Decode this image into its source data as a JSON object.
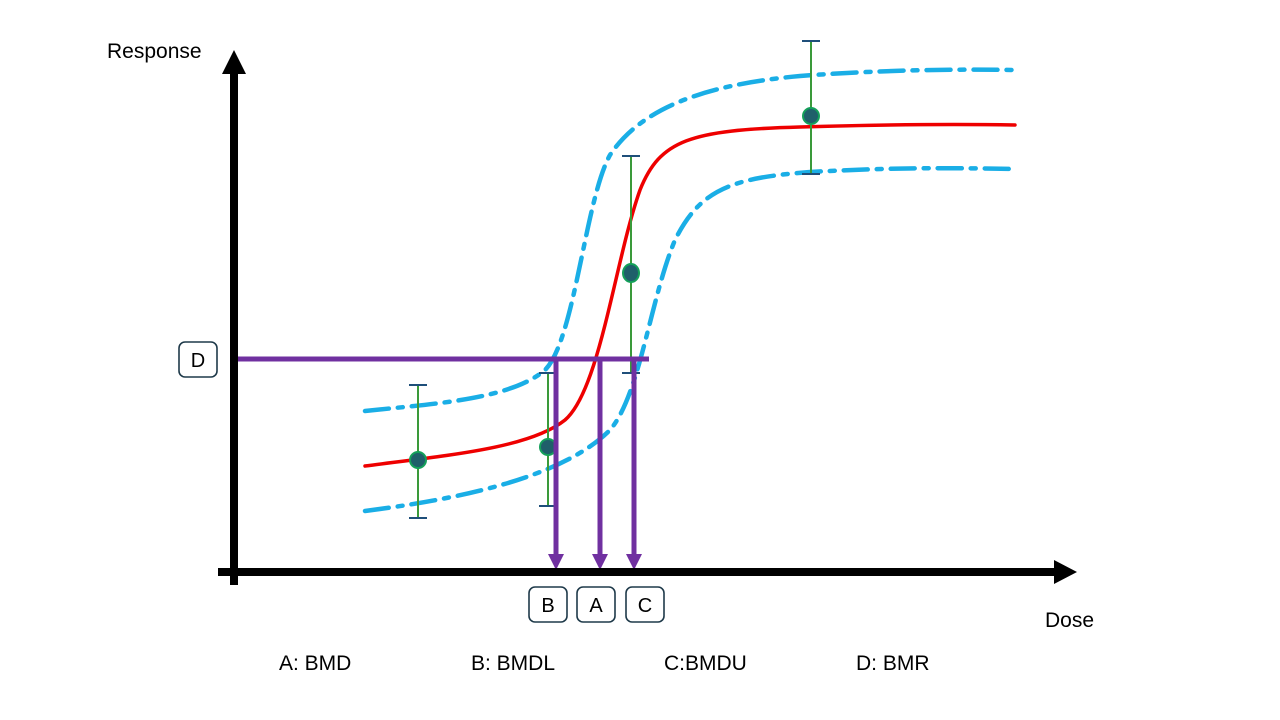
{
  "axes": {
    "y_label": "Response",
    "x_label": "Dose"
  },
  "markers": {
    "A": "A",
    "B": "B",
    "C": "C",
    "D": "D"
  },
  "legend": [
    {
      "key": "A",
      "text": "A: BMD"
    },
    {
      "key": "B",
      "text": "B: BMDL"
    },
    {
      "key": "C",
      "text": "C:BMDU"
    },
    {
      "key": "D",
      "text": "D: BMR"
    }
  ],
  "colors": {
    "fit_curve": "#ee0000",
    "confidence_band": "#1aaee6",
    "error_bar": "#3a9a3a",
    "error_cap": "#1f4f7a",
    "data_point_fill": "#1f5f6a",
    "data_point_stroke": "#14a05a",
    "benchmark_lines": "#7030a0",
    "axis": "#000000"
  },
  "data_points": [
    {
      "dose": 1,
      "response": 0.3,
      "lower": 0.14,
      "upper": 0.46
    },
    {
      "dose": 2,
      "response": 0.33,
      "lower": 0.17,
      "upper": 0.59
    },
    {
      "dose": 3,
      "response": 0.72,
      "lower": 0.49,
      "upper": 1.0
    },
    {
      "dose": 4,
      "response": 1.28,
      "lower": 1.17,
      "upper": 1.45
    }
  ]
}
